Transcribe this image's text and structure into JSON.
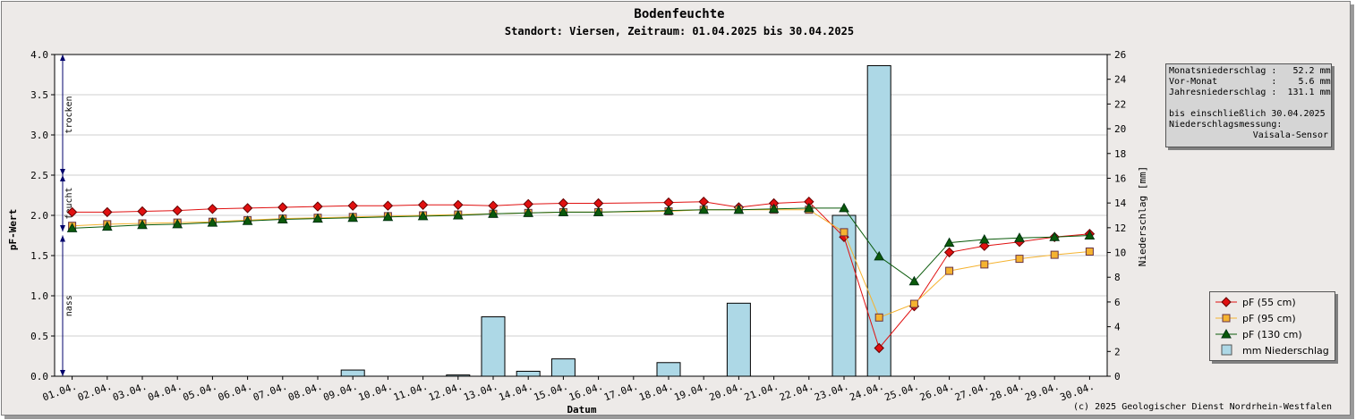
{
  "chart_data": {
    "type": "bar+line",
    "title": "Bodenfeuchte",
    "subtitle": "Standort: Viersen, Zeitraum: 01.04.2025 bis 30.04.2025",
    "xlabel": "Datum",
    "ylabel_left": "pF-Wert",
    "ylabel_right": "Niederschlag [mm]",
    "ylim_left": [
      0,
      4
    ],
    "ylim_right": [
      0,
      26
    ],
    "yticks_left": [
      "0.0",
      "0.5",
      "1.0",
      "1.5",
      "2.0",
      "2.5",
      "3.0",
      "3.5",
      "4.0"
    ],
    "yticks_right": [
      "0",
      "2",
      "4",
      "6",
      "8",
      "10",
      "12",
      "14",
      "16",
      "18",
      "20",
      "22",
      "24",
      "26"
    ],
    "categories": [
      "01.04.",
      "02.04.",
      "03.04.",
      "04.04.",
      "05.04.",
      "06.04.",
      "07.04.",
      "08.04.",
      "09.04.",
      "10.04.",
      "11.04.",
      "12.04.",
      "13.04.",
      "14.04.",
      "15.04.",
      "16.04.",
      "17.04.",
      "18.04.",
      "19.04.",
      "20.04.",
      "21.04.",
      "22.04.",
      "23.04.",
      "24.04.",
      "25.04.",
      "26.04.",
      "27.04.",
      "28.04.",
      "29.04.",
      "30.04."
    ],
    "zones": [
      {
        "label": "trocken",
        "from": 2.5,
        "to": 4.0
      },
      {
        "label": "feucht",
        "from": 1.8,
        "to": 2.5
      },
      {
        "label": "nass",
        "from": 0.0,
        "to": 1.75
      }
    ],
    "series": [
      {
        "name": "pF (55 cm)",
        "color": "#e01010",
        "marker": "diamond",
        "values": [
          2.04,
          2.04,
          2.05,
          2.06,
          2.08,
          2.09,
          2.1,
          2.11,
          2.12,
          2.12,
          2.13,
          2.13,
          2.12,
          2.14,
          2.15,
          2.15,
          null,
          2.16,
          2.17,
          2.1,
          2.15,
          2.17,
          1.73,
          0.35,
          0.87,
          1.54,
          1.62,
          1.67,
          1.73,
          1.77
        ]
      },
      {
        "name": "pF (95 cm)",
        "color": "#f5b330",
        "marker": "square",
        "values": [
          1.87,
          1.89,
          1.9,
          1.91,
          1.92,
          1.94,
          1.96,
          1.97,
          1.98,
          1.99,
          2.0,
          2.01,
          2.02,
          2.03,
          2.04,
          2.04,
          null,
          2.05,
          2.07,
          2.07,
          2.07,
          2.07,
          1.79,
          0.73,
          0.9,
          1.31,
          1.39,
          1.46,
          1.51,
          1.55
        ]
      },
      {
        "name": "pF (130 cm)",
        "color": "#0a5a0a",
        "marker": "triangle",
        "values": [
          1.84,
          1.86,
          1.88,
          1.89,
          1.91,
          1.93,
          1.95,
          1.96,
          1.97,
          1.98,
          1.99,
          2.0,
          2.02,
          2.03,
          2.04,
          2.04,
          null,
          2.06,
          2.07,
          2.07,
          2.08,
          2.09,
          2.09,
          1.49,
          1.18,
          1.66,
          1.7,
          1.72,
          1.73,
          1.75
        ]
      }
    ],
    "bars": {
      "name": "mm  Niederschlag",
      "color": "#add8e6",
      "values": [
        0,
        0,
        0,
        0,
        0,
        0,
        0,
        0,
        0.5,
        0,
        0,
        0.1,
        4.8,
        0.4,
        1.4,
        0,
        0,
        1.1,
        0,
        5.9,
        0,
        0,
        13.0,
        25.1,
        0,
        0,
        0,
        0,
        0,
        0
      ]
    },
    "legend_position": "bottom-right",
    "grid": true
  },
  "info": {
    "line1": "Monatsniederschlag :   52.2 mm",
    "line2": "Vor-Monat          :    5.6 mm",
    "line3": "Jahresniederschlag :  131.1 mm",
    "line4": "bis einschließlich 30.04.2025",
    "line5": "Niederschlagsmessung:",
    "line6": "Vaisala-Sensor"
  },
  "copyright": "(c) 2025 Geologischer Dienst Nordrhein-Westfalen"
}
